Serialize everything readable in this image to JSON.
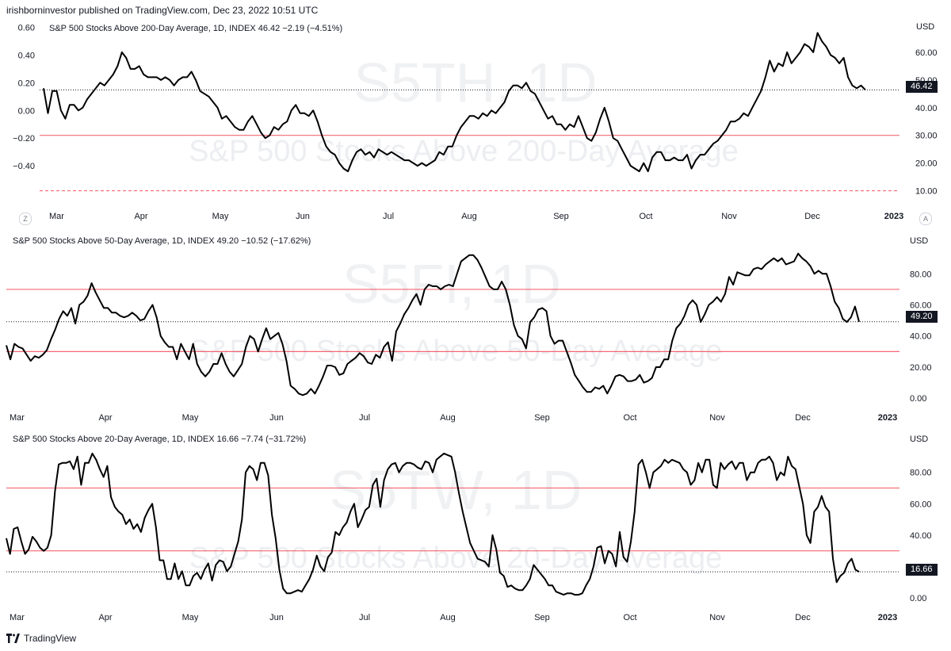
{
  "header": {
    "publisher_text": "irishborninvestor published on TradingView.com, Dec 23, 2022 10:51 UTC"
  },
  "footer": {
    "brand": "TradingView"
  },
  "panels": [
    {
      "title": "S&P 500 Stocks Above 200-Day Average, 1D, INDEX  46.42  −2.19 (−4.51%)",
      "watermark_ticker": "S5TH, 1D",
      "watermark_name": "S&P 500 Stocks Above 200-Day Average",
      "currency": "USD",
      "last_value_label": "46.42",
      "z_button": "Z",
      "a_button": "A"
    },
    {
      "title": "S&P 500 Stocks Above 50-Day Average, 1D, INDEX  49.20  −10.52 (−17.62%)",
      "watermark_ticker": "S5FI, 1D",
      "watermark_name": "S&P 500 Stocks Above 50-Day Average",
      "currency": "USD",
      "last_value_label": "49.20"
    },
    {
      "title": "S&P 500 Stocks Above 20-Day Average, 1D, INDEX  16.66  −7.74 (−31.72%)",
      "watermark_ticker": "S5TW, 1D",
      "watermark_name": "S&P 500 Stocks Above 20-Day Average",
      "currency": "USD",
      "last_value_label": "16.66"
    }
  ],
  "chart_data": [
    {
      "type": "line",
      "title": "S&P 500 Stocks Above 200-Day Average, 1D, INDEX",
      "last": 46.42,
      "change": -2.19,
      "change_pct": -4.51,
      "ylim": [
        5,
        68
      ],
      "right_ticks": [
        "10.00",
        "20.00",
        "30.00",
        "40.00",
        "50.00",
        "60.00"
      ],
      "right_tick_values": [
        10,
        20,
        30,
        40,
        50,
        60
      ],
      "left_ticks": [
        "0.60",
        "0.40",
        "0.20",
        "0.00",
        "−0.20",
        "−0.40"
      ],
      "left_tick_values": [
        0.6,
        0.4,
        0.2,
        0.0,
        -0.2,
        -0.4
      ],
      "left_tick_positions_in_data_units": [
        69,
        59,
        49,
        39,
        29,
        19
      ],
      "hlines": [
        {
          "value": 30,
          "color": "#f23645",
          "style": "solid"
        },
        {
          "value": 10,
          "color": "#f23645",
          "style": "dashed"
        }
      ],
      "last_line": 46.42,
      "x_labels": [
        "Mar",
        "Apr",
        "May",
        "Jun",
        "Jul",
        "Aug",
        "Sep",
        "Oct",
        "Nov",
        "Dec",
        "2023"
      ],
      "values": [
        47,
        38,
        46,
        46,
        39,
        36,
        41,
        41,
        39,
        40,
        43,
        45,
        47,
        49,
        48,
        50,
        52,
        55,
        60,
        58,
        54,
        54,
        55,
        52,
        51,
        51,
        51,
        50,
        51,
        50,
        48,
        50,
        51,
        51,
        53,
        50,
        46,
        45,
        44,
        42,
        40,
        36,
        37,
        35,
        33,
        32,
        32,
        35,
        37,
        34,
        31,
        29,
        30,
        33,
        32,
        34,
        35,
        39,
        41,
        38,
        38,
        37,
        39,
        35,
        30,
        26,
        24,
        23,
        20,
        18,
        17,
        21,
        24,
        25,
        23,
        24,
        22,
        25,
        24,
        23,
        24,
        23,
        22,
        21,
        21,
        20,
        19,
        20,
        19,
        20,
        21,
        24,
        23,
        26,
        26,
        30,
        33,
        35,
        37,
        37,
        36,
        38,
        37,
        39,
        38,
        40,
        42,
        46,
        48,
        48,
        47,
        49,
        46,
        45,
        42,
        39,
        36,
        37,
        34,
        34,
        32,
        34,
        33,
        37,
        33,
        29,
        28,
        31,
        36,
        40,
        35,
        29,
        28,
        25,
        22,
        19,
        18,
        17,
        20,
        17,
        22,
        24,
        24,
        21,
        21,
        22,
        21,
        21,
        23,
        18,
        21,
        23,
        23,
        25,
        27,
        28,
        30,
        32,
        35,
        35,
        36,
        38,
        37,
        40,
        43,
        46,
        51,
        57,
        53,
        56,
        55,
        60,
        56,
        58,
        60,
        63,
        62,
        60,
        67,
        64,
        62,
        59,
        58,
        56,
        58,
        51,
        48,
        47,
        48,
        46.42
      ]
    },
    {
      "type": "line",
      "title": "S&P 500 Stocks Above 50-Day Average, 1D, INDEX",
      "last": 49.2,
      "change": -10.52,
      "change_pct": -17.62,
      "ylim": [
        -5,
        98
      ],
      "right_ticks": [
        "0.00",
        "20.00",
        "40.00",
        "60.00",
        "80.00"
      ],
      "right_tick_values": [
        0,
        20,
        40,
        60,
        80
      ],
      "hlines": [
        {
          "value": 70,
          "color": "#f23645",
          "style": "solid"
        },
        {
          "value": 30,
          "color": "#f23645",
          "style": "solid"
        }
      ],
      "last_line": 49.2,
      "x_labels": [
        "Mar",
        "Apr",
        "May",
        "Jun",
        "Jul",
        "Aug",
        "Sep",
        "Oct",
        "Nov",
        "Dec",
        "2023"
      ],
      "values": [
        34,
        25,
        35,
        33,
        32,
        28,
        24,
        27,
        26,
        28,
        31,
        38,
        44,
        51,
        56,
        53,
        58,
        48,
        60,
        62,
        66,
        74,
        68,
        63,
        58,
        58,
        55,
        55,
        53,
        52,
        53,
        55,
        53,
        50,
        51,
        56,
        60,
        52,
        40,
        36,
        33,
        33,
        25,
        35,
        30,
        25,
        35,
        22,
        17,
        14,
        17,
        22,
        22,
        29,
        22,
        17,
        14,
        18,
        22,
        33,
        40,
        38,
        30,
        38,
        45,
        38,
        40,
        42,
        35,
        24,
        8,
        6,
        3,
        2,
        3,
        6,
        3,
        8,
        14,
        21,
        21,
        20,
        15,
        16,
        22,
        24,
        26,
        29,
        27,
        23,
        22,
        28,
        26,
        33,
        36,
        24,
        43,
        48,
        54,
        58,
        63,
        67,
        60,
        70,
        73,
        72,
        72,
        70,
        72,
        73,
        72,
        80,
        88,
        90,
        92,
        92,
        89,
        84,
        78,
        72,
        70,
        70,
        75,
        70,
        60,
        47,
        40,
        38,
        32,
        49,
        52,
        57,
        58,
        56,
        40,
        35,
        37,
        37,
        30,
        23,
        15,
        11,
        7,
        4,
        4,
        7,
        6,
        8,
        3,
        8,
        14,
        15,
        14,
        11,
        11,
        12,
        15,
        10,
        11,
        13,
        20,
        20,
        25,
        25,
        37,
        45,
        48,
        53,
        60,
        63,
        60,
        49,
        54,
        60,
        62,
        65,
        62,
        67,
        78,
        73,
        81,
        80,
        79,
        79,
        83,
        84,
        83,
        86,
        88,
        90,
        88,
        90,
        86,
        87,
        88,
        93,
        90,
        88,
        85,
        80,
        82,
        80,
        80,
        72,
        62,
        58,
        51,
        49,
        52,
        59,
        49.2
      ]
    },
    {
      "type": "line",
      "title": "S&P 500 Stocks Above 20-Day Average, 1D, INDEX",
      "last": 16.66,
      "change": -7.74,
      "change_pct": -31.72,
      "ylim": [
        -5,
        98
      ],
      "right_ticks": [
        "0.00",
        "20.00",
        "40.00",
        "60.00",
        "80.00"
      ],
      "right_tick_values": [
        0,
        20,
        40,
        60,
        80
      ],
      "hlines": [
        {
          "value": 70,
          "color": "#f23645",
          "style": "solid"
        },
        {
          "value": 30,
          "color": "#f23645",
          "style": "solid"
        }
      ],
      "last_line": 16.66,
      "x_labels": [
        "Mar",
        "Apr",
        "May",
        "Jun",
        "Jul",
        "Aug",
        "Sep",
        "Oct",
        "Nov",
        "Dec",
        "2023"
      ],
      "values": [
        38,
        28,
        44,
        45,
        36,
        28,
        31,
        39,
        36,
        32,
        30,
        32,
        40,
        68,
        85,
        86,
        86,
        87,
        82,
        90,
        72,
        86,
        86,
        92,
        88,
        82,
        77,
        84,
        64,
        58,
        55,
        53,
        47,
        50,
        44,
        47,
        42,
        51,
        56,
        60,
        45,
        24,
        24,
        12,
        12,
        22,
        12,
        17,
        8,
        8,
        14,
        16,
        12,
        18,
        22,
        11,
        21,
        24,
        23,
        17,
        20,
        28,
        36,
        50,
        80,
        84,
        82,
        75,
        86,
        86,
        78,
        53,
        38,
        18,
        6,
        3,
        3,
        4,
        5,
        4,
        8,
        12,
        18,
        27,
        20,
        17,
        26,
        29,
        42,
        40,
        45,
        48,
        55,
        60,
        45,
        50,
        56,
        58,
        72,
        76,
        58,
        75,
        82,
        85,
        86,
        80,
        84,
        86,
        86,
        85,
        83,
        82,
        87,
        86,
        80,
        88,
        90,
        92,
        91,
        90,
        80,
        67,
        55,
        45,
        35,
        30,
        25,
        24,
        23,
        20,
        40,
        31,
        16,
        14,
        7,
        8,
        6,
        5,
        5,
        8,
        12,
        21,
        18,
        15,
        12,
        8,
        8,
        4,
        3,
        2,
        3,
        3,
        2,
        2,
        3,
        8,
        12,
        20,
        32,
        33,
        22,
        30,
        28,
        20,
        42,
        26,
        23,
        36,
        55,
        85,
        88,
        80,
        70,
        80,
        82,
        84,
        88,
        86,
        88,
        87,
        86,
        82,
        80,
        72,
        75,
        86,
        80,
        88,
        88,
        72,
        70,
        86,
        82,
        85,
        87,
        82,
        86,
        86,
        75,
        80,
        80,
        86,
        88,
        88,
        90,
        86,
        75,
        80,
        78,
        90,
        84,
        82,
        71,
        60,
        40,
        35,
        55,
        58,
        65,
        58,
        55,
        25,
        10,
        14,
        16,
        22,
        25,
        18,
        16.66
      ]
    }
  ],
  "icons": {
    "tradingview_logo": "tradingview-logo-icon"
  }
}
